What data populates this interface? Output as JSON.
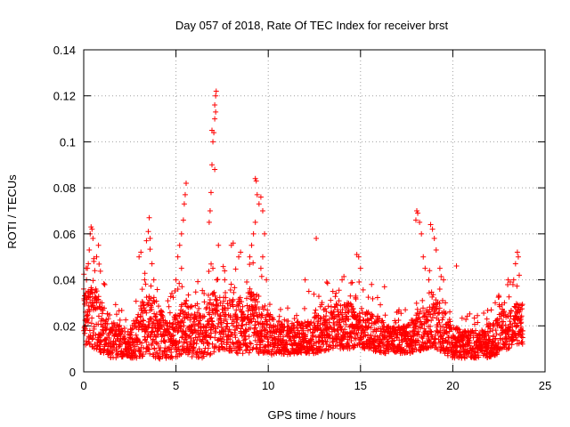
{
  "chart_data": {
    "type": "scatter",
    "title": "Day 057 of 2018, Rate Of TEC Index for receiver brst",
    "xlabel": "GPS time / hours",
    "ylabel": "ROTI / TECUs",
    "xlim": [
      0,
      25
    ],
    "ylim": [
      0,
      0.14
    ],
    "xticks": [
      0,
      5,
      10,
      15,
      20,
      25
    ],
    "xtick_labels": [
      "0",
      "5",
      "10",
      "15",
      "20",
      "25"
    ],
    "yticks": [
      0,
      0.02,
      0.04,
      0.06,
      0.08,
      0.1,
      0.12,
      0.14
    ],
    "ytick_labels": [
      "0",
      "0.02",
      "0.04",
      "0.06",
      "0.08",
      "0.1",
      "0.12",
      "0.14"
    ],
    "grid": true,
    "marker": "+",
    "series": [
      {
        "name": "ROTI",
        "color": "#ff0000",
        "points": [
          [
            0.0,
            0.036
          ],
          [
            0.05,
            0.033
          ],
          [
            0.1,
            0.02
          ],
          [
            0.15,
            0.04
          ],
          [
            0.2,
            0.045
          ],
          [
            0.25,
            0.047
          ],
          [
            0.3,
            0.053
          ],
          [
            0.35,
            0.06
          ],
          [
            0.4,
            0.063
          ],
          [
            0.45,
            0.062
          ],
          [
            0.5,
            0.058
          ],
          [
            0.55,
            0.048
          ],
          [
            0.6,
            0.044
          ],
          [
            0.7,
            0.05
          ],
          [
            0.8,
            0.055
          ],
          [
            0.9,
            0.03
          ],
          [
            1.0,
            0.028
          ],
          [
            1.2,
            0.022
          ],
          [
            0.3,
            0.015
          ],
          [
            0.6,
            0.012
          ],
          [
            0.9,
            0.01
          ],
          [
            1.1,
            0.018
          ],
          [
            3.0,
            0.05
          ],
          [
            3.1,
            0.052
          ],
          [
            3.3,
            0.04
          ],
          [
            3.4,
            0.057
          ],
          [
            3.5,
            0.061
          ],
          [
            3.55,
            0.067
          ],
          [
            3.6,
            0.058
          ],
          [
            3.7,
            0.047
          ],
          [
            3.8,
            0.04
          ],
          [
            3.2,
            0.03
          ],
          [
            5.0,
            0.04
          ],
          [
            5.1,
            0.05
          ],
          [
            5.2,
            0.055
          ],
          [
            5.3,
            0.06
          ],
          [
            5.4,
            0.066
          ],
          [
            5.45,
            0.073
          ],
          [
            5.5,
            0.077
          ],
          [
            5.55,
            0.082
          ],
          [
            5.3,
            0.045
          ],
          [
            6.8,
            0.065
          ],
          [
            6.85,
            0.07
          ],
          [
            6.9,
            0.078
          ],
          [
            6.95,
            0.09
          ],
          [
            7.0,
            0.1
          ],
          [
            6.95,
            0.105
          ],
          [
            7.05,
            0.104
          ],
          [
            7.1,
            0.088
          ],
          [
            7.1,
            0.11
          ],
          [
            7.15,
            0.113
          ],
          [
            7.15,
            0.12
          ],
          [
            7.18,
            0.122
          ],
          [
            7.1,
            0.116
          ],
          [
            7.2,
            0.04
          ],
          [
            7.0,
            0.045
          ],
          [
            7.3,
            0.055
          ],
          [
            8.0,
            0.055
          ],
          [
            8.1,
            0.056
          ],
          [
            8.4,
            0.05
          ],
          [
            8.5,
            0.052
          ],
          [
            9.0,
            0.05
          ],
          [
            9.1,
            0.055
          ],
          [
            9.2,
            0.06
          ],
          [
            9.3,
            0.065
          ],
          [
            9.3,
            0.084
          ],
          [
            9.35,
            0.083
          ],
          [
            9.4,
            0.077
          ],
          [
            9.5,
            0.073
          ],
          [
            9.6,
            0.076
          ],
          [
            9.7,
            0.07
          ],
          [
            9.8,
            0.06
          ],
          [
            9.7,
            0.05
          ],
          [
            9.6,
            0.045
          ],
          [
            9.9,
            0.04
          ],
          [
            12.0,
            0.04
          ],
          [
            12.6,
            0.058
          ],
          [
            12.2,
            0.035
          ],
          [
            13.5,
            0.035
          ],
          [
            14.0,
            0.04
          ],
          [
            14.8,
            0.051
          ],
          [
            14.9,
            0.05
          ],
          [
            15.0,
            0.045
          ],
          [
            15.6,
            0.038
          ],
          [
            16.3,
            0.037
          ],
          [
            18.0,
            0.066
          ],
          [
            18.05,
            0.07
          ],
          [
            18.1,
            0.069
          ],
          [
            18.2,
            0.065
          ],
          [
            18.3,
            0.06
          ],
          [
            18.4,
            0.05
          ],
          [
            18.5,
            0.045
          ],
          [
            18.7,
            0.04
          ],
          [
            18.8,
            0.064
          ],
          [
            18.9,
            0.062
          ],
          [
            19.0,
            0.058
          ],
          [
            19.1,
            0.053
          ],
          [
            19.3,
            0.045
          ],
          [
            19.5,
            0.04
          ],
          [
            19.6,
            0.03
          ],
          [
            20.2,
            0.046
          ],
          [
            22.3,
            0.03
          ],
          [
            22.8,
            0.03
          ],
          [
            23.0,
            0.04
          ],
          [
            23.3,
            0.04
          ],
          [
            23.4,
            0.047
          ],
          [
            23.5,
            0.052
          ],
          [
            23.55,
            0.05
          ],
          [
            23.6,
            0.042
          ]
        ]
      }
    ],
    "density_envelope": {
      "note": "approximate spread of the dense point cloud: [hour, typical_low, typical_high]",
      "rows": [
        [
          0,
          0.012,
          0.032
        ],
        [
          0.5,
          0.01,
          0.04
        ],
        [
          1,
          0.008,
          0.03
        ],
        [
          1.5,
          0.006,
          0.022
        ],
        [
          2,
          0.006,
          0.02
        ],
        [
          2.5,
          0.006,
          0.018
        ],
        [
          3,
          0.006,
          0.028
        ],
        [
          3.5,
          0.008,
          0.038
        ],
        [
          4,
          0.005,
          0.03
        ],
        [
          4.5,
          0.006,
          0.022
        ],
        [
          5,
          0.006,
          0.025
        ],
        [
          5.5,
          0.008,
          0.032
        ],
        [
          6,
          0.006,
          0.028
        ],
        [
          6.5,
          0.006,
          0.025
        ],
        [
          7,
          0.008,
          0.035
        ],
        [
          7.5,
          0.01,
          0.032
        ],
        [
          8,
          0.008,
          0.035
        ],
        [
          8.5,
          0.008,
          0.033
        ],
        [
          9,
          0.008,
          0.035
        ],
        [
          9.5,
          0.008,
          0.033
        ],
        [
          10,
          0.007,
          0.025
        ],
        [
          10.5,
          0.008,
          0.022
        ],
        [
          11,
          0.007,
          0.02
        ],
        [
          11.5,
          0.008,
          0.022
        ],
        [
          12,
          0.008,
          0.022
        ],
        [
          12.5,
          0.008,
          0.025
        ],
        [
          13,
          0.009,
          0.027
        ],
        [
          13.5,
          0.01,
          0.03
        ],
        [
          14,
          0.01,
          0.03
        ],
        [
          14.5,
          0.01,
          0.03
        ],
        [
          15,
          0.01,
          0.028
        ],
        [
          15.5,
          0.01,
          0.026
        ],
        [
          16,
          0.008,
          0.024
        ],
        [
          16.5,
          0.008,
          0.02
        ],
        [
          17,
          0.008,
          0.02
        ],
        [
          17.5,
          0.008,
          0.02
        ],
        [
          18,
          0.008,
          0.025
        ],
        [
          18.5,
          0.01,
          0.03
        ],
        [
          19,
          0.01,
          0.033
        ],
        [
          19.5,
          0.008,
          0.028
        ],
        [
          20,
          0.006,
          0.02
        ],
        [
          20.5,
          0.006,
          0.018
        ],
        [
          21,
          0.006,
          0.018
        ],
        [
          21.5,
          0.006,
          0.018
        ],
        [
          22,
          0.006,
          0.02
        ],
        [
          22.5,
          0.008,
          0.025
        ],
        [
          23,
          0.01,
          0.028
        ],
        [
          23.5,
          0.012,
          0.03
        ],
        [
          23.8,
          0.012,
          0.03
        ]
      ]
    }
  }
}
